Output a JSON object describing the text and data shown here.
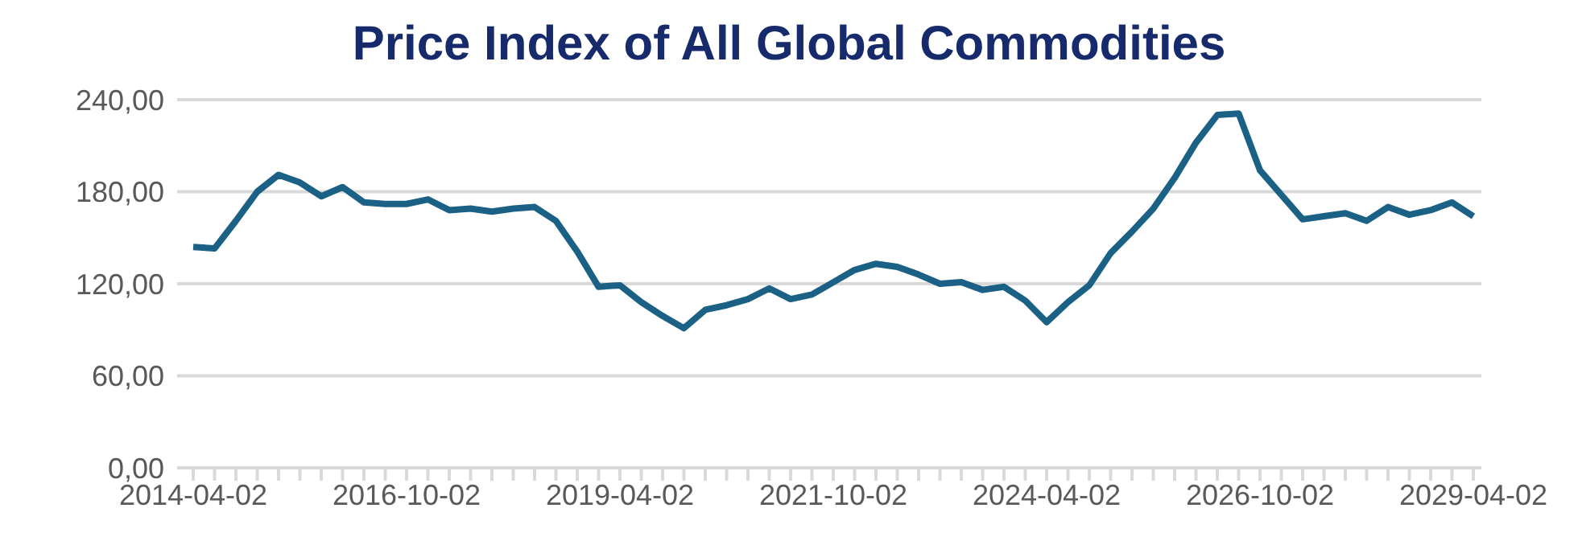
{
  "chart_data": {
    "type": "line",
    "title": "Price Index of All Global Commodities",
    "categories": [
      "2014-04-02",
      null,
      null,
      null,
      null,
      null,
      null,
      null,
      null,
      null,
      "2016-10-02",
      null,
      null,
      null,
      null,
      null,
      null,
      null,
      null,
      null,
      "2019-04-02",
      null,
      null,
      null,
      null,
      null,
      null,
      null,
      null,
      null,
      "2021-10-02",
      null,
      null,
      null,
      null,
      null,
      null,
      null,
      null,
      null,
      "2024-04-02",
      null,
      null,
      null,
      null,
      null,
      null,
      null,
      null,
      null,
      "2026-10-02",
      null,
      null,
      null,
      null,
      null,
      null,
      null,
      null,
      null,
      "2029-04-02"
    ],
    "series": [
      {
        "color": "#1b6185",
        "values": [
          144,
          143,
          161,
          180,
          191,
          186,
          177,
          183,
          173,
          172,
          172,
          175,
          168,
          169,
          167,
          169,
          170,
          161,
          141,
          118,
          119,
          108,
          99,
          91,
          103,
          106,
          110,
          117,
          110,
          113,
          121,
          129,
          133,
          131,
          126,
          120,
          121,
          116,
          118,
          109,
          95,
          108,
          119,
          140,
          154,
          169,
          189,
          212,
          230,
          231,
          194,
          178,
          162,
          164,
          166,
          161,
          170,
          165,
          168,
          173,
          164
        ]
      }
    ],
    "ylim": [
      0,
      240
    ],
    "yticks": [
      {
        "value": 0,
        "label": "0,00"
      },
      {
        "value": 60,
        "label": "60,00"
      },
      {
        "value": 120,
        "label": "120,00"
      },
      {
        "value": 180,
        "label": "180,00"
      },
      {
        "value": 240,
        "label": "240,00"
      }
    ],
    "grid": "y",
    "legend": false,
    "marker": "none",
    "line_style": "solid"
  }
}
